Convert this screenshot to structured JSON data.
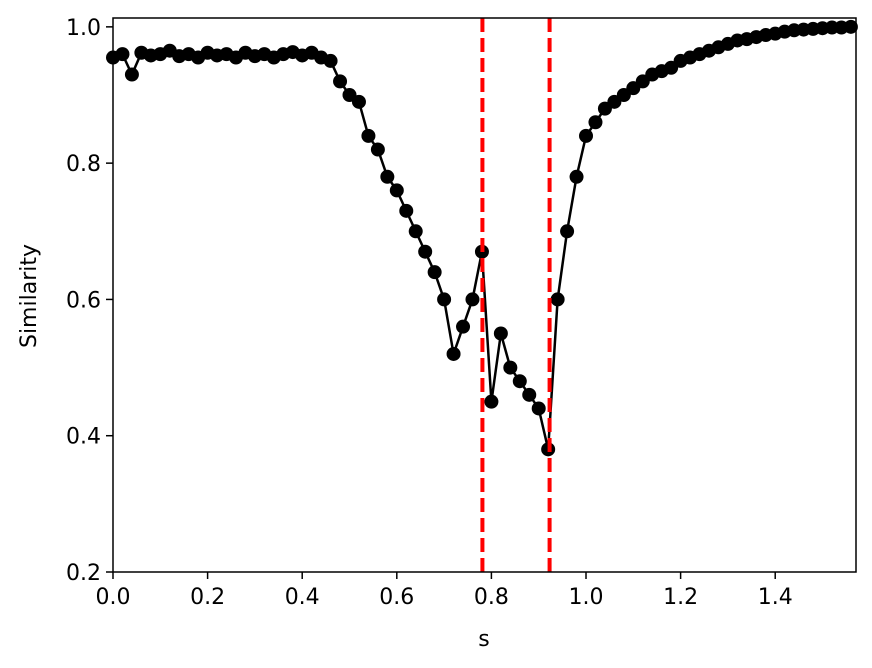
{
  "chart_data": {
    "type": "line",
    "xlabel": "s",
    "ylabel": "Similarity",
    "x": [
      0,
      0.02,
      0.04,
      0.06,
      0.08,
      0.1,
      0.12,
      0.14,
      0.16,
      0.18,
      0.2,
      0.22,
      0.24,
      0.26,
      0.28,
      0.3,
      0.32,
      0.34,
      0.36,
      0.38,
      0.4,
      0.42,
      0.44,
      0.46,
      0.48,
      0.5,
      0.52,
      0.54,
      0.56,
      0.58,
      0.6,
      0.62,
      0.64,
      0.66,
      0.68,
      0.7,
      0.72,
      0.74,
      0.76,
      0.78,
      0.8,
      0.82,
      0.84,
      0.86,
      0.88,
      0.9,
      0.92,
      0.94,
      0.96,
      0.98,
      1.0,
      1.02,
      1.04,
      1.06,
      1.08,
      1.1,
      1.12,
      1.14,
      1.16,
      1.18,
      1.2,
      1.22,
      1.24,
      1.26,
      1.28,
      1.3,
      1.32,
      1.34,
      1.36,
      1.38,
      1.4,
      1.42,
      1.44,
      1.46,
      1.48,
      1.5,
      1.52,
      1.54,
      1.56
    ],
    "series": [
      {
        "name": "Similarity",
        "color": "#000000",
        "values": [
          0.955,
          0.96,
          0.93,
          0.962,
          0.958,
          0.96,
          0.965,
          0.957,
          0.96,
          0.955,
          0.962,
          0.958,
          0.96,
          0.955,
          0.962,
          0.957,
          0.96,
          0.955,
          0.96,
          0.963,
          0.958,
          0.962,
          0.955,
          0.95,
          0.92,
          0.9,
          0.89,
          0.84,
          0.82,
          0.78,
          0.76,
          0.73,
          0.7,
          0.67,
          0.64,
          0.6,
          0.52,
          0.56,
          0.6,
          0.67,
          0.45,
          0.55,
          0.5,
          0.48,
          0.46,
          0.44,
          0.38,
          0.6,
          0.7,
          0.78,
          0.84,
          0.86,
          0.88,
          0.89,
          0.9,
          0.91,
          0.92,
          0.93,
          0.935,
          0.94,
          0.95,
          0.955,
          0.96,
          0.965,
          0.97,
          0.975,
          0.98,
          0.982,
          0.985,
          0.988,
          0.99,
          0.993,
          0.995,
          0.996,
          0.997,
          0.998,
          0.999,
          0.999,
          1.0
        ]
      }
    ],
    "vlines": [
      0.781,
      0.923
    ],
    "vline_color": "#ff0000",
    "xlim": [
      0,
      1.5708
    ],
    "ylim": [
      0.2,
      1.013
    ],
    "xticks": [
      {
        "value": 0,
        "label": "0.0"
      },
      0.2,
      0.4,
      0.6,
      0.8,
      {
        "value": 1,
        "label": "1.0"
      },
      1.2,
      1.4
    ],
    "yticks": [
      0.2,
      0.4,
      0.6,
      0.8,
      {
        "value": 1,
        "label": "1.0"
      }
    ]
  }
}
